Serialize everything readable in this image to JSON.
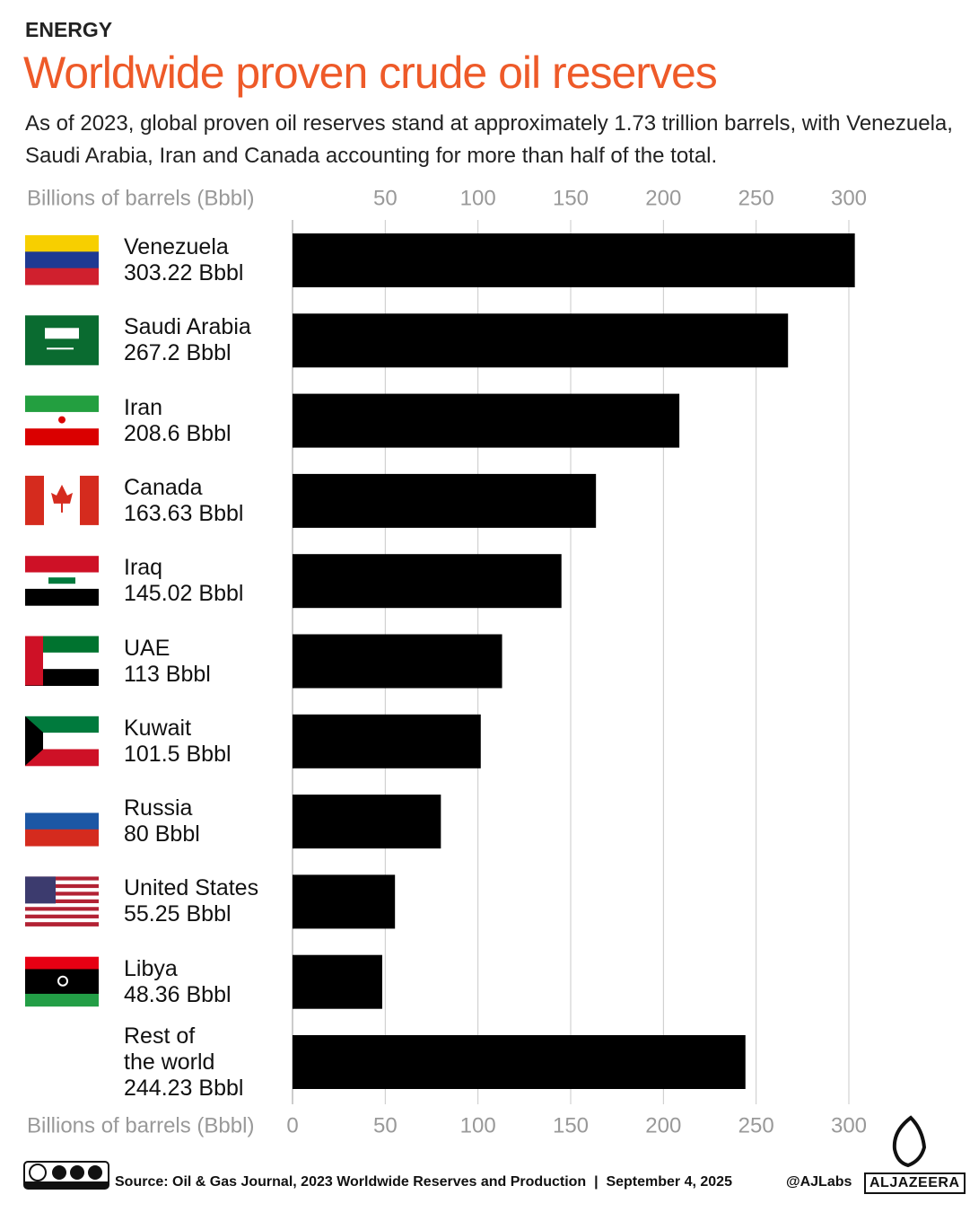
{
  "header": {
    "kicker": "ENERGY",
    "title": "Worldwide proven crude oil reserves",
    "subtitle": "As of 2023, global proven oil reserves stand at approximately 1.73 trillion barrels, with Venezuela, Saudi Arabia, Iran and Canada accounting for more than half of the total."
  },
  "chart_data": {
    "type": "bar",
    "orientation": "horizontal",
    "x_label": "Billions of barrels (Bbbl)",
    "categories": [
      "Venezuela",
      "Saudi Arabia",
      "Iran",
      "Canada",
      "Iraq",
      "UAE",
      "Kuwait",
      "Russia",
      "United States",
      "Libya",
      "Rest of\nthe world"
    ],
    "values": [
      303.22,
      267.2,
      208.6,
      163.63,
      145.02,
      113,
      101.5,
      80,
      55.25,
      48.36,
      244.23
    ],
    "value_labels": [
      "303.22 Bbbl",
      "267.2 Bbbl",
      "208.6 Bbbl",
      "163.63 Bbbl",
      "145.02 Bbbl",
      "113 Bbbl",
      "101.5 Bbbl",
      "80 Bbbl",
      "55.25 Bbbl",
      "48.36 Bbbl",
      "244.23 Bbbl"
    ],
    "color": "#000000",
    "xlim": [
      0,
      300
    ],
    "xticks": [
      0,
      50,
      100,
      150,
      200,
      250,
      300
    ],
    "grid": true
  },
  "footer": {
    "source": "Source: Oil & Gas Journal, 2023 Worldwide Reserves and Production",
    "date": "September 4, 2025",
    "handle": "@AJLabs",
    "logo": "ALJAZEERA"
  }
}
